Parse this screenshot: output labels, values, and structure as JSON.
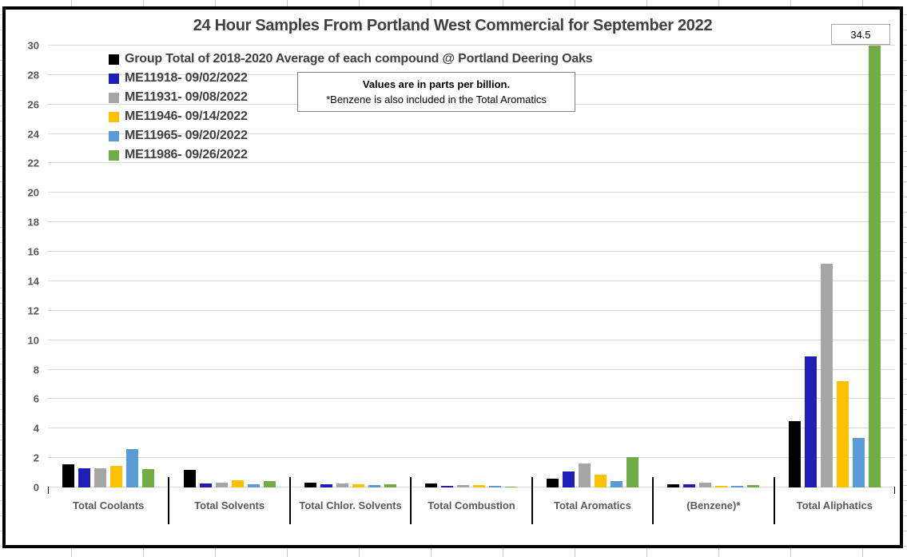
{
  "chart_data": {
    "type": "bar",
    "title": "24 Hour Samples From Portland West Commercial for September 2022",
    "ylabel": "",
    "xlabel": "",
    "ylim": [
      0,
      30
    ],
    "ytick_step": 2,
    "grid": true,
    "legend_position": "top-left-inside",
    "units_note": {
      "line1": "Values are in parts per billion.",
      "line2": "*Benzene is also included in the Total Aromatics"
    },
    "categories": [
      "Total Coolants",
      "Total Solvents",
      "Total Chlor. Solvents",
      "Total Combustion",
      "Total Aromatics",
      "(Benzene)*",
      "Total Aliphatics"
    ],
    "series": [
      {
        "name": "Group Total of 2018-2020 Average of each compound @ Portland Deering Oaks",
        "color": "#000000",
        "values": [
          1.55,
          1.2,
          0.35,
          0.25,
          0.6,
          0.2,
          4.5
        ]
      },
      {
        "name": "ME11918- 09/02/2022",
        "color": "#1f1fb4",
        "values": [
          1.3,
          0.25,
          0.2,
          0.1,
          1.1,
          0.2,
          8.9
        ]
      },
      {
        "name": "ME11931- 09/08/2022",
        "color": "#a6a6a6",
        "values": [
          1.3,
          0.3,
          0.25,
          0.15,
          1.65,
          0.3,
          15.2
        ]
      },
      {
        "name": "ME11946- 09/14/2022",
        "color": "#ffc000",
        "values": [
          1.45,
          0.5,
          0.2,
          0.15,
          0.85,
          0.1,
          7.2
        ]
      },
      {
        "name": "ME11965- 09/20/2022",
        "color": "#5b9bd5",
        "values": [
          2.6,
          0.2,
          0.15,
          0.1,
          0.45,
          0.1,
          3.35
        ]
      },
      {
        "name": "ME11986- 09/26/2022",
        "color": "#70ad47",
        "values": [
          1.25,
          0.45,
          0.2,
          0.05,
          2.05,
          0.15,
          34.5
        ]
      }
    ],
    "data_label": {
      "value": "34.5",
      "series": "ME11986- 09/26/2022",
      "category": "Total Aliphatics"
    }
  }
}
